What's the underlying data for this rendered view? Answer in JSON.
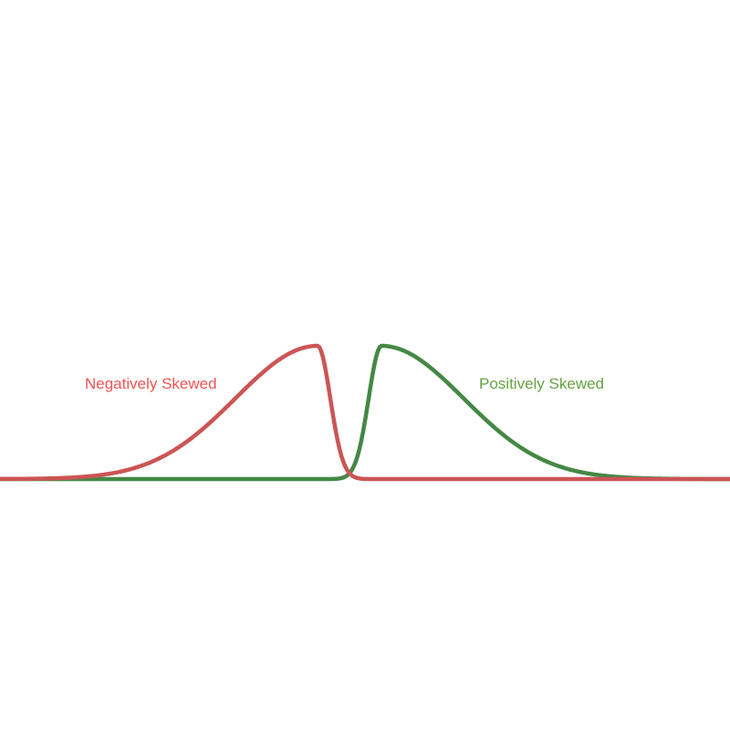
{
  "curves": {
    "negative": {
      "label": "Negatively Skewed",
      "label_color": "#ee5555",
      "line_color": "#cc5555",
      "skew_direction": "left"
    },
    "positive": {
      "label": "Positively Skewed",
      "label_color": "#66a344",
      "line_color": "#448844",
      "skew_direction": "right"
    }
  },
  "background_color": "#ffffff"
}
